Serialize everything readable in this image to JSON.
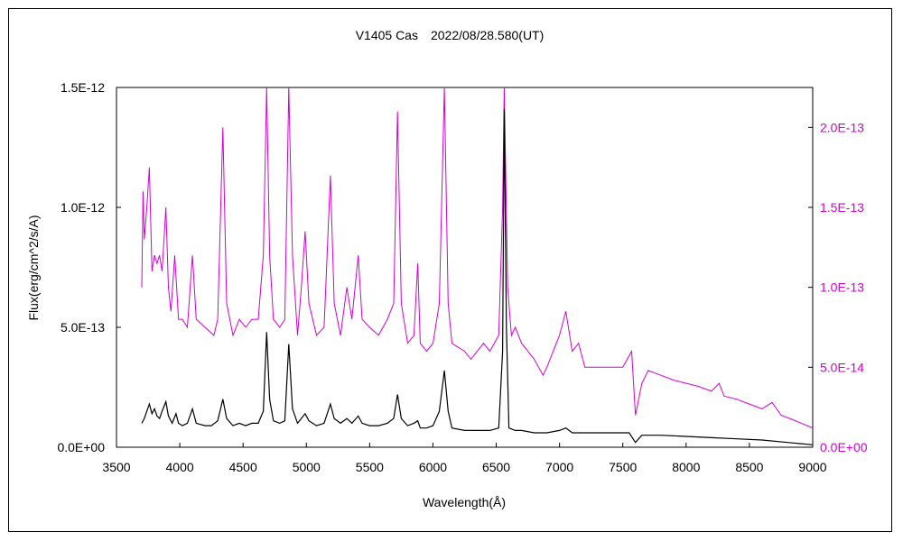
{
  "chart_data": {
    "type": "line",
    "title": "V1405 Cas　2022/08/28.580(UT)",
    "xlabel": "Wavelength(Å)",
    "ylabel": "Flux(erg/cm^2/s/A)",
    "xlim": [
      3500,
      9000
    ],
    "ylim_left": [
      0,
      1.5e-12
    ],
    "ylim_right": [
      0,
      2.25e-13
    ],
    "x_ticks": [
      "3500",
      "4000",
      "4500",
      "5000",
      "5500",
      "6000",
      "6500",
      "7000",
      "7500",
      "8000",
      "8500",
      "9000"
    ],
    "y_ticks_left": [
      "0.0E+00",
      "5.0E-13",
      "1.0E-12",
      "1.5E-12"
    ],
    "y_ticks_right": [
      "0.0E+00",
      "5.0E-14",
      "1.0E-13",
      "1.5E-13",
      "2.0E-13"
    ],
    "grid": false,
    "colors": {
      "series_left": "#000000",
      "series_right": "#d400d4"
    },
    "series": [
      {
        "axis": "left",
        "points": [
          [
            3700,
            1e-13
          ],
          [
            3720,
            1.2e-13
          ],
          [
            3740,
            1.5e-13
          ],
          [
            3760,
            1.8e-13
          ],
          [
            3780,
            1.4e-13
          ],
          [
            3800,
            1.6e-13
          ],
          [
            3820,
            1.3e-13
          ],
          [
            3840,
            1.2e-13
          ],
          [
            3860,
            1.5e-13
          ],
          [
            3890,
            1.9e-13
          ],
          [
            3910,
            1.3e-13
          ],
          [
            3940,
            1e-13
          ],
          [
            3970,
            1.4e-13
          ],
          [
            3990,
            1e-13
          ],
          [
            4020,
            9e-14
          ],
          [
            4060,
            1e-13
          ],
          [
            4100,
            1.6e-13
          ],
          [
            4130,
            1e-13
          ],
          [
            4200,
            9e-14
          ],
          [
            4250,
            9e-14
          ],
          [
            4300,
            1.1e-13
          ],
          [
            4340,
            2e-13
          ],
          [
            4370,
            1.2e-13
          ],
          [
            4420,
            9e-14
          ],
          [
            4470,
            1e-13
          ],
          [
            4520,
            9e-14
          ],
          [
            4570,
            1e-13
          ],
          [
            4620,
            1e-13
          ],
          [
            4660,
            1.5e-13
          ],
          [
            4686,
            4.8e-13
          ],
          [
            4710,
            2e-13
          ],
          [
            4740,
            1.1e-13
          ],
          [
            4790,
            1e-13
          ],
          [
            4830,
            1.1e-13
          ],
          [
            4861,
            4.3e-13
          ],
          [
            4890,
            1.6e-13
          ],
          [
            4930,
            1e-13
          ],
          [
            4960,
            1.2e-13
          ],
          [
            4990,
            1.4e-13
          ],
          [
            5020,
            1.1e-13
          ],
          [
            5080,
            9e-14
          ],
          [
            5140,
            1e-13
          ],
          [
            5190,
            1.8e-13
          ],
          [
            5220,
            1.2e-13
          ],
          [
            5270,
            1e-13
          ],
          [
            5320,
            1.2e-13
          ],
          [
            5360,
            1e-13
          ],
          [
            5410,
            1.3e-13
          ],
          [
            5440,
            1e-13
          ],
          [
            5500,
            9e-14
          ],
          [
            5570,
            9e-14
          ],
          [
            5640,
            1e-13
          ],
          [
            5690,
            1.2e-13
          ],
          [
            5720,
            2.2e-13
          ],
          [
            5750,
            1.2e-13
          ],
          [
            5800,
            9e-14
          ],
          [
            5850,
            1e-13
          ],
          [
            5880,
            1.1e-13
          ],
          [
            5900,
            8e-14
          ],
          [
            5950,
            8e-14
          ],
          [
            6000,
            9e-14
          ],
          [
            6050,
            1.5e-13
          ],
          [
            6090,
            3.2e-13
          ],
          [
            6120,
            1.5e-13
          ],
          [
            6150,
            8e-14
          ],
          [
            6250,
            7e-14
          ],
          [
            6350,
            7e-14
          ],
          [
            6450,
            7e-14
          ],
          [
            6520,
            8e-14
          ],
          [
            6550,
            4e-13
          ],
          [
            6563,
            1.41e-12
          ],
          [
            6580,
            5e-13
          ],
          [
            6600,
            8e-14
          ],
          [
            6650,
            7e-14
          ],
          [
            6700,
            7e-14
          ],
          [
            6800,
            6e-14
          ],
          [
            6900,
            6e-14
          ],
          [
            7000,
            7e-14
          ],
          [
            7050,
            8e-14
          ],
          [
            7100,
            6e-14
          ],
          [
            7200,
            6e-14
          ],
          [
            7300,
            6e-14
          ],
          [
            7400,
            6e-14
          ],
          [
            7550,
            6e-14
          ],
          [
            7600,
            2e-14
          ],
          [
            7650,
            5e-14
          ],
          [
            7700,
            5e-14
          ],
          [
            7800,
            5e-14
          ],
          [
            8000,
            4.5e-14
          ],
          [
            8200,
            4e-14
          ],
          [
            8400,
            3.5e-14
          ],
          [
            8600,
            3e-14
          ],
          [
            8800,
            2e-14
          ],
          [
            9000,
            1e-14
          ]
        ]
      },
      {
        "axis": "right",
        "points": [
          [
            3700,
            1e-13
          ],
          [
            3710,
            1.6e-13
          ],
          [
            3720,
            1.3e-13
          ],
          [
            3740,
            1.5e-13
          ],
          [
            3760,
            1.75e-13
          ],
          [
            3780,
            1.1e-13
          ],
          [
            3800,
            1.2e-13
          ],
          [
            3820,
            1.15e-13
          ],
          [
            3840,
            1.2e-13
          ],
          [
            3860,
            1.1e-13
          ],
          [
            3890,
            1.5e-13
          ],
          [
            3910,
            1e-13
          ],
          [
            3930,
            8.5e-14
          ],
          [
            3960,
            1.2e-13
          ],
          [
            3990,
            8e-14
          ],
          [
            4020,
            8e-14
          ],
          [
            4060,
            7.5e-14
          ],
          [
            4100,
            1.2e-13
          ],
          [
            4130,
            8e-14
          ],
          [
            4200,
            7.5e-14
          ],
          [
            4270,
            7e-14
          ],
          [
            4300,
            8e-14
          ],
          [
            4340,
            2e-13
          ],
          [
            4370,
            9e-14
          ],
          [
            4420,
            7e-14
          ],
          [
            4470,
            8e-14
          ],
          [
            4520,
            7.5e-14
          ],
          [
            4570,
            8e-14
          ],
          [
            4620,
            8e-14
          ],
          [
            4660,
            1.2e-13
          ],
          [
            4686,
            2.25e-13
          ],
          [
            4710,
            1.2e-13
          ],
          [
            4740,
            8e-14
          ],
          [
            4790,
            7.5e-14
          ],
          [
            4830,
            8e-14
          ],
          [
            4861,
            2.25e-13
          ],
          [
            4890,
            1.2e-13
          ],
          [
            4930,
            7e-14
          ],
          [
            4960,
            1e-13
          ],
          [
            4990,
            1.35e-13
          ],
          [
            5020,
            9e-14
          ],
          [
            5080,
            7e-14
          ],
          [
            5140,
            7.5e-14
          ],
          [
            5190,
            1.7e-13
          ],
          [
            5220,
            9e-14
          ],
          [
            5270,
            7e-14
          ],
          [
            5320,
            1e-13
          ],
          [
            5360,
            8e-14
          ],
          [
            5410,
            1.2e-13
          ],
          [
            5440,
            8e-14
          ],
          [
            5500,
            7.5e-14
          ],
          [
            5570,
            7e-14
          ],
          [
            5640,
            8e-14
          ],
          [
            5690,
            9e-14
          ],
          [
            5720,
            2.1e-13
          ],
          [
            5750,
            9e-14
          ],
          [
            5800,
            6.5e-14
          ],
          [
            5850,
            7e-14
          ],
          [
            5880,
            1.15e-13
          ],
          [
            5900,
            6.5e-14
          ],
          [
            5950,
            6e-14
          ],
          [
            6000,
            6.5e-14
          ],
          [
            6050,
            9e-14
          ],
          [
            6090,
            2.25e-13
          ],
          [
            6120,
            9e-14
          ],
          [
            6150,
            6.5e-14
          ],
          [
            6250,
            6e-14
          ],
          [
            6300,
            5.5e-14
          ],
          [
            6350,
            6e-14
          ],
          [
            6400,
            6.5e-14
          ],
          [
            6450,
            6e-14
          ],
          [
            6520,
            7e-14
          ],
          [
            6550,
            1.5e-13
          ],
          [
            6563,
            2.25e-13
          ],
          [
            6590,
            1e-13
          ],
          [
            6620,
            7e-14
          ],
          [
            6650,
            7.5e-14
          ],
          [
            6700,
            6.5e-14
          ],
          [
            6800,
            5.5e-14
          ],
          [
            6870,
            4.5e-14
          ],
          [
            6900,
            5e-14
          ],
          [
            7000,
            7e-14
          ],
          [
            7050,
            8.5e-14
          ],
          [
            7100,
            6e-14
          ],
          [
            7150,
            6.5e-14
          ],
          [
            7200,
            5e-14
          ],
          [
            7300,
            5e-14
          ],
          [
            7400,
            5e-14
          ],
          [
            7500,
            5e-14
          ],
          [
            7570,
            6e-14
          ],
          [
            7600,
            2e-14
          ],
          [
            7650,
            4e-14
          ],
          [
            7700,
            4.8e-14
          ],
          [
            7800,
            4.5e-14
          ],
          [
            7900,
            4.2e-14
          ],
          [
            8000,
            4e-14
          ],
          [
            8100,
            3.8e-14
          ],
          [
            8200,
            3.5e-14
          ],
          [
            8260,
            4e-14
          ],
          [
            8300,
            3.2e-14
          ],
          [
            8400,
            3e-14
          ],
          [
            8500,
            2.7e-14
          ],
          [
            8600,
            2.4e-14
          ],
          [
            8680,
            2.8e-14
          ],
          [
            8750,
            2e-14
          ],
          [
            8850,
            1.7e-14
          ],
          [
            9000,
            1.2e-14
          ]
        ]
      }
    ]
  }
}
